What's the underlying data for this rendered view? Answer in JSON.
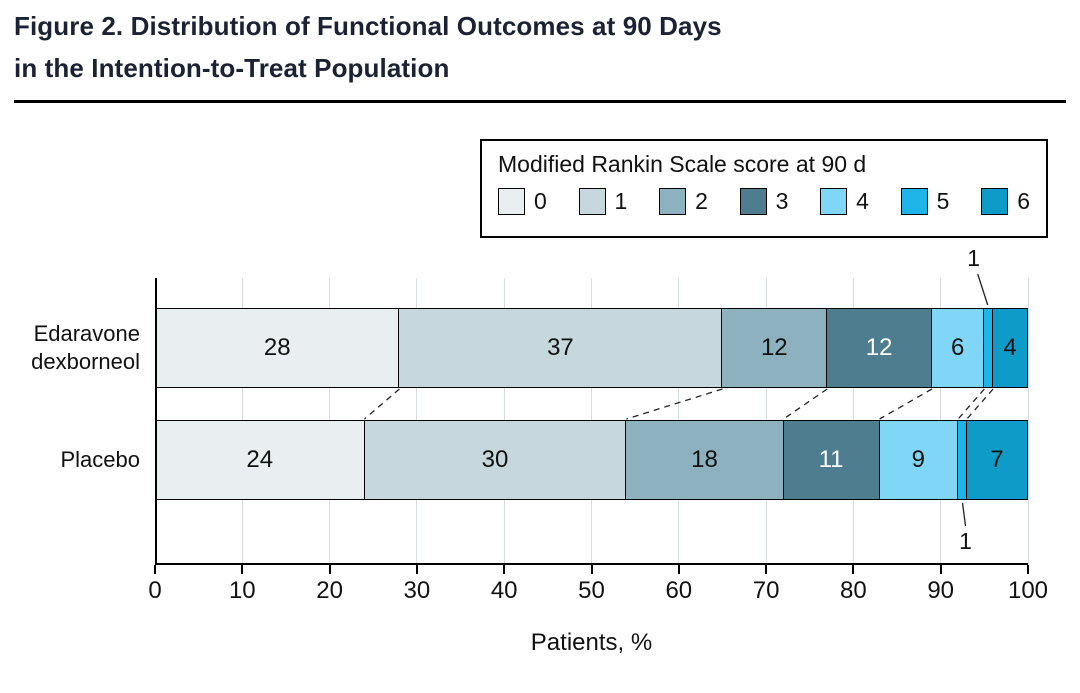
{
  "figure": {
    "title_line1": "Figure 2. Distribution of Functional Outcomes at 90 Days",
    "title_line2": "in the Intention-to-Treat Population"
  },
  "legend": {
    "title": "Modified Rankin Scale score at 90 d"
  },
  "chart_data": {
    "type": "bar",
    "orientation": "horizontal",
    "stacked": true,
    "title": "Figure 2. Distribution of Functional Outcomes at 90 Days in the Intention-to-Treat Population",
    "xlabel": "Patients, %",
    "xlim": [
      0,
      100
    ],
    "xticks": [
      0,
      10,
      20,
      30,
      40,
      50,
      60,
      70,
      80,
      90,
      100
    ],
    "grid": true,
    "legend_title": "Modified Rankin Scale score at 90 d",
    "legend_position": "top-right",
    "categories": [
      "Edaravone dexborneol",
      "Placebo"
    ],
    "series": [
      {
        "name": "0",
        "color": "#e9eff1",
        "values": [
          28,
          24
        ]
      },
      {
        "name": "1",
        "color": "#c6d7de",
        "values": [
          37,
          30
        ]
      },
      {
        "name": "2",
        "color": "#8eb1bf",
        "values": [
          12,
          18
        ]
      },
      {
        "name": "3",
        "color": "#4f7d90",
        "values": [
          12,
          11
        ],
        "label_color": "#ffffff"
      },
      {
        "name": "4",
        "color": "#7fd6f7",
        "values": [
          6,
          9
        ]
      },
      {
        "name": "5",
        "color": "#1eb4e8",
        "values": [
          1,
          1
        ],
        "label_outside": true
      },
      {
        "name": "6",
        "color": "#0e9bc8",
        "values": [
          4,
          7
        ]
      }
    ],
    "annotations": [
      {
        "text": "1",
        "row": 0,
        "series_index": 5,
        "placement": "above"
      },
      {
        "text": "1",
        "row": 1,
        "series_index": 5,
        "placement": "below"
      }
    ]
  }
}
